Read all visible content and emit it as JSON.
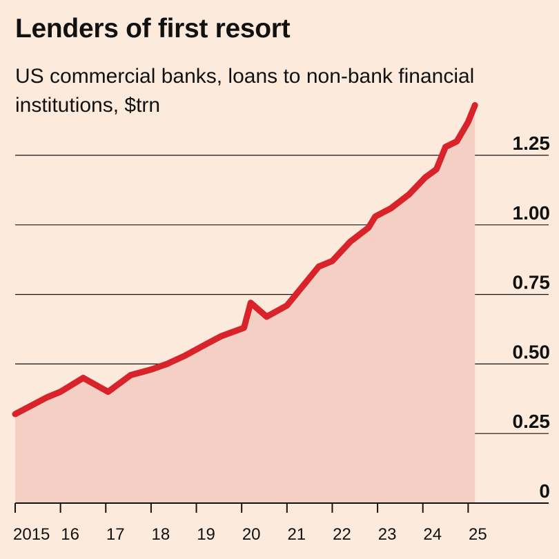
{
  "header": {
    "title": "Lenders of first resort",
    "subtitle": "US commercial banks, loans to non-bank financial institutions, $trn"
  },
  "colors": {
    "background": "#fcebdc",
    "line": "#d8232a",
    "area": "#f4cfc4",
    "gridline": "#111111"
  },
  "chart_data": {
    "type": "area",
    "title": "Lenders of first resort",
    "subtitle": "US commercial banks, loans to non-bank financial institutions, $trn",
    "xlabel": "",
    "ylabel": "",
    "xlim": [
      2015,
      2026
    ],
    "ylim": [
      0,
      1.25
    ],
    "yticks": [
      0,
      0.25,
      0.5,
      0.75,
      1.0,
      1.25
    ],
    "ytick_labels": [
      "0",
      "0.25",
      "0.50",
      "0.75",
      "1.00",
      "1.25"
    ],
    "xticks": [
      2015,
      2016,
      2017,
      2018,
      2019,
      2020,
      2021,
      2022,
      2023,
      2024,
      2025
    ],
    "xtick_labels": [
      "2015",
      "16",
      "17",
      "18",
      "19",
      "20",
      "21",
      "22",
      "23",
      "24",
      "25"
    ],
    "grid": "horizontal",
    "y_axis_position": "right",
    "series": [
      {
        "x": [
          2015.0,
          2015.35,
          2015.7,
          2016.0,
          2016.5,
          2017.05,
          2017.55,
          2018.0,
          2018.35,
          2018.75,
          2019.2,
          2019.55,
          2020.05,
          2020.2,
          2020.55,
          2021.0,
          2021.4,
          2021.7,
          2022.0,
          2022.4,
          2022.8,
          2022.95,
          2023.3,
          2023.7,
          2024.05,
          2024.3,
          2024.5,
          2024.75,
          2025.0,
          2025.15
        ],
        "y": [
          0.32,
          0.35,
          0.38,
          0.4,
          0.45,
          0.4,
          0.46,
          0.48,
          0.5,
          0.53,
          0.57,
          0.6,
          0.63,
          0.72,
          0.67,
          0.71,
          0.79,
          0.85,
          0.87,
          0.94,
          0.99,
          1.03,
          1.06,
          1.11,
          1.17,
          1.2,
          1.28,
          1.3,
          1.37,
          1.43
        ]
      }
    ]
  }
}
